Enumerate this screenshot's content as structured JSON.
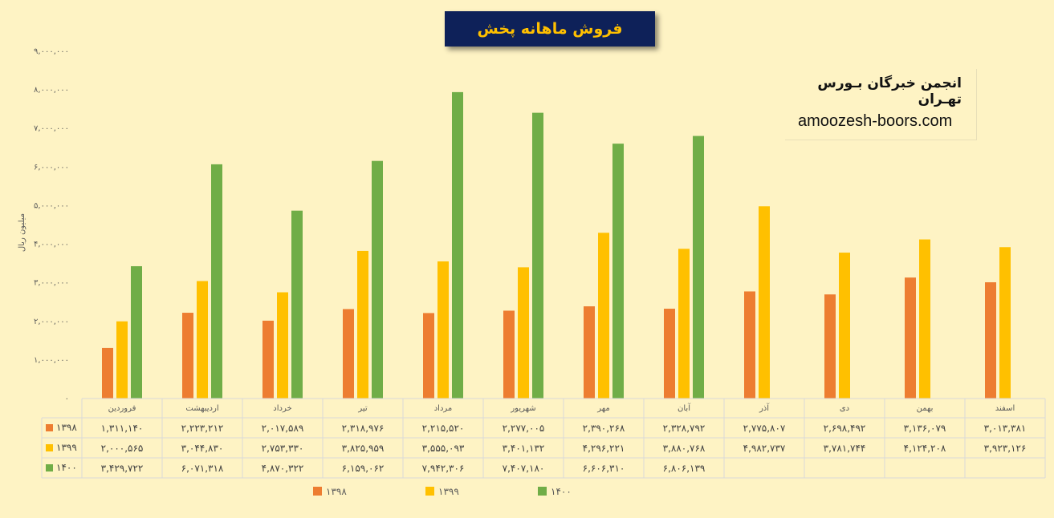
{
  "chart_data": {
    "type": "bar",
    "title": "فروش ماهانه پخش",
    "ylabel": "میلیون ریال",
    "ylim": [
      0,
      9000000
    ],
    "y_ticks": [
      "۰",
      "۱,۰۰۰,۰۰۰",
      "۲,۰۰۰,۰۰۰",
      "۳,۰۰۰,۰۰۰",
      "۴,۰۰۰,۰۰۰",
      "۵,۰۰۰,۰۰۰",
      "۶,۰۰۰,۰۰۰",
      "۷,۰۰۰,۰۰۰",
      "۸,۰۰۰,۰۰۰",
      "۹,۰۰۰,۰۰۰"
    ],
    "y_tick_values": [
      0,
      1000000,
      2000000,
      3000000,
      4000000,
      5000000,
      6000000,
      7000000,
      8000000,
      9000000
    ],
    "categories": [
      "فروردین",
      "اردیبهشت",
      "خرداد",
      "تیر",
      "مرداد",
      "شهریور",
      "مهر",
      "آبان",
      "آذر",
      "دی",
      "بهمن",
      "اسفند"
    ],
    "grid": false,
    "legend_position": "bottom",
    "series": [
      {
        "name": "۱۳۹۸",
        "color": "#ED7D31",
        "values": [
          1311140,
          2223212,
          2017589,
          2318976,
          2215520,
          2277005,
          2390268,
          2328792,
          2775807,
          2698492,
          3136079,
          3013381
        ],
        "labels": [
          "۱,۳۱۱,۱۴۰",
          "۲,۲۲۳,۲۱۲",
          "۲,۰۱۷,۵۸۹",
          "۲,۳۱۸,۹۷۶",
          "۲,۲۱۵,۵۲۰",
          "۲,۲۷۷,۰۰۵",
          "۲,۳۹۰,۲۶۸",
          "۲,۳۲۸,۷۹۲",
          "۲,۷۷۵,۸۰۷",
          "۲,۶۹۸,۴۹۲",
          "۳,۱۳۶,۰۷۹",
          "۳,۰۱۳,۳۸۱"
        ]
      },
      {
        "name": "۱۳۹۹",
        "color": "#FFC000",
        "values": [
          2000565,
          3044830,
          2753330,
          3825959,
          3555093,
          3401132,
          4296221,
          3880768,
          4982737,
          3781744,
          4124208,
          3923126
        ],
        "labels": [
          "۲,۰۰۰,۵۶۵",
          "۳,۰۴۴,۸۳۰",
          "۲,۷۵۳,۳۳۰",
          "۳,۸۲۵,۹۵۹",
          "۳,۵۵۵,۰۹۳",
          "۳,۴۰۱,۱۳۲",
          "۴,۲۹۶,۲۲۱",
          "۳,۸۸۰,۷۶۸",
          "۴,۹۸۲,۷۳۷",
          "۳,۷۸۱,۷۴۴",
          "۴,۱۲۴,۲۰۸",
          "۳,۹۲۳,۱۲۶"
        ]
      },
      {
        "name": "۱۴۰۰",
        "color": "#70AD47",
        "values": [
          3429722,
          6071318,
          4870322,
          6159062,
          7942306,
          7407180,
          6606310,
          6806139,
          null,
          null,
          null,
          null
        ],
        "labels": [
          "۳,۴۲۹,۷۲۲",
          "۶,۰۷۱,۳۱۸",
          "۴,۸۷۰,۳۲۲",
          "۶,۱۵۹,۰۶۲",
          "۷,۹۴۲,۳۰۶",
          "۷,۴۰۷,۱۸۰",
          "۶,۶۰۶,۳۱۰",
          "۶,۸۰۶,۱۳۹",
          "",
          "",
          "",
          ""
        ]
      }
    ]
  },
  "watermark": {
    "name": "انجمن خبرگان بـورس تهـران",
    "url": "amoozesh-boors.com"
  }
}
